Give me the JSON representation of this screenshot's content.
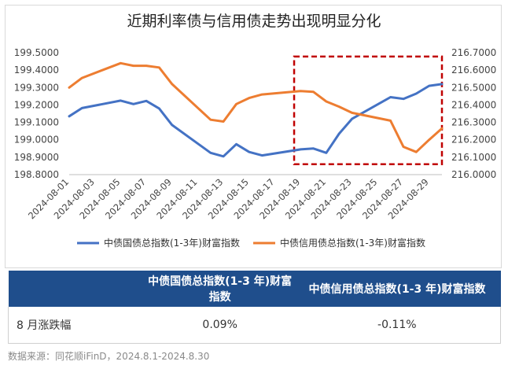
{
  "chart_data": {
    "type": "line",
    "title": "近期利率债与信用债走势出现明显分化",
    "x": [
      "2024-08-01",
      "2024-08-02",
      "2024-08-05",
      "2024-08-06",
      "2024-08-07",
      "2024-08-08",
      "2024-08-09",
      "2024-08-12",
      "2024-08-13",
      "2024-08-14",
      "2024-08-15",
      "2024-08-16",
      "2024-08-19",
      "2024-08-20",
      "2024-08-21",
      "2024-08-22",
      "2024-08-23",
      "2024-08-26",
      "2024-08-27",
      "2024-08-28",
      "2024-08-29",
      "2024-08-30"
    ],
    "x_day": [
      1,
      2,
      5,
      6,
      7,
      8,
      9,
      12,
      13,
      14,
      15,
      16,
      19,
      20,
      21,
      22,
      23,
      26,
      27,
      28,
      29,
      30
    ],
    "x_tick_labels": [
      "2024-08-01",
      "2024-08-03",
      "2024-08-05",
      "2024-08-07",
      "2024-08-09",
      "2024-08-11",
      "2024-08-13",
      "2024-08-15",
      "2024-08-17",
      "2024-08-19",
      "2024-08-21",
      "2024-08-23",
      "2024-08-25",
      "2024-08-27",
      "2024-08-29"
    ],
    "x_tick_days": [
      1,
      3,
      5,
      7,
      9,
      11,
      13,
      15,
      17,
      19,
      21,
      23,
      25,
      27,
      29
    ],
    "series": [
      {
        "name": "中债国债总指数(1-3年)财富指数",
        "axis": "left",
        "color": "#4472c4",
        "values": [
          199.135,
          199.182,
          199.225,
          199.205,
          199.223,
          199.18,
          199.085,
          198.925,
          198.905,
          198.975,
          198.93,
          198.91,
          198.945,
          198.95,
          198.925,
          199.035,
          199.12,
          199.245,
          199.235,
          199.265,
          199.31,
          199.32
        ]
      },
      {
        "name": "中债信用债总指数(1-3年)财富指数",
        "axis": "right",
        "color": "#ed7d31",
        "values": [
          216.5,
          216.555,
          216.64,
          216.625,
          216.625,
          216.615,
          216.52,
          216.315,
          216.305,
          216.405,
          216.44,
          216.46,
          216.48,
          216.475,
          216.42,
          216.39,
          216.355,
          216.31,
          216.16,
          216.13,
          216.2,
          216.265
        ]
      }
    ],
    "y_left": {
      "min": 198.8,
      "max": 199.5,
      "ticks": [
        "198.8000",
        "198.9000",
        "199.0000",
        "199.1000",
        "199.2000",
        "199.3000",
        "199.4000",
        "199.5000"
      ]
    },
    "y_right": {
      "min": 216.0,
      "max": 216.7,
      "ticks": [
        "216.0000",
        "216.1000",
        "216.2000",
        "216.3000",
        "216.4000",
        "216.5000",
        "216.6000",
        "216.7000"
      ]
    },
    "highlight": {
      "x_from_day": 18.5,
      "x_to_day": 30,
      "y_from": 198.86,
      "y_to": 199.478,
      "style": "dashed",
      "color": "#c00000"
    },
    "legend": "bottom",
    "grid": false
  },
  "table": {
    "headers": [
      "",
      "中债国债总指数(1-3 年)财富指数",
      "中债信用债总指数(1-3 年)财富指数"
    ],
    "row_label": "8 月涨跌幅",
    "values": [
      "0.09%",
      "-0.11%"
    ]
  },
  "source_note": "数据来源：同花顺iFinD，2024.8.1-2024.8.30"
}
